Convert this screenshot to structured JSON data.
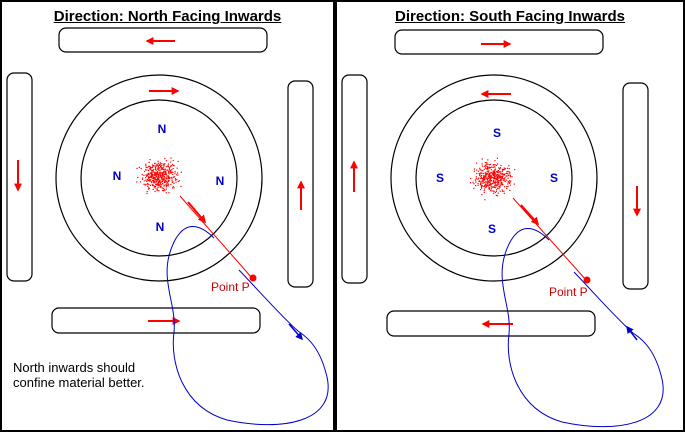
{
  "left": {
    "title": "Direction: North Facing Inwards",
    "pole_letter": "N",
    "point_label": "Point P",
    "note_line1": "North inwards should",
    "note_line2": "confine material better."
  },
  "right": {
    "title": "Direction: South Facing Inwards",
    "pole_letter": "S",
    "point_label": "Point P"
  },
  "colors": {
    "arrow": "#ff0000",
    "pole_text": "#0000cc",
    "field_line": "#0000cc",
    "particles": "#ff0000"
  }
}
